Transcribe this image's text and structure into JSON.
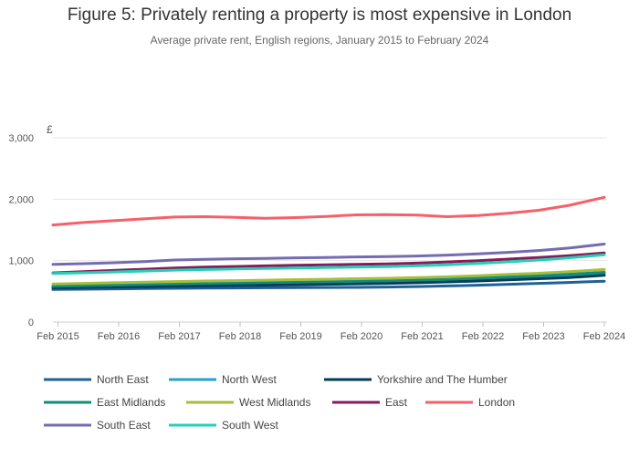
{
  "title": "Figure 5: Privately renting a property is most expensive in London",
  "subtitle": "Average private rent, English regions, January 2015 to February 2024",
  "chart_data": {
    "type": "line",
    "title": "Figure 5: Privately renting a property is most expensive in London",
    "subtitle": "Average private rent, English regions, January 2015 to February 2024",
    "ylabel": "£",
    "xlabel": "",
    "ylim": [
      0,
      3000
    ],
    "yticks": [
      0,
      1000,
      2000,
      3000
    ],
    "ytick_labels": [
      "0",
      "1,000",
      "2,000",
      "3,000"
    ],
    "xlim": [
      "2015-01",
      "2024-02"
    ],
    "xticks": [
      "2015-02",
      "2016-02",
      "2017-02",
      "2018-02",
      "2019-02",
      "2020-02",
      "2021-02",
      "2022-02",
      "2023-02",
      "2024-02"
    ],
    "xtick_labels": [
      "Feb 2015",
      "Feb 2016",
      "Feb 2017",
      "Feb 2018",
      "Feb 2019",
      "Feb 2020",
      "Feb 2021",
      "Feb 2022",
      "Feb 2023",
      "Feb 2024"
    ],
    "grid": "horizontal",
    "legend_position": "bottom",
    "x": [
      "2015-01",
      "2015-07",
      "2016-01",
      "2016-07",
      "2017-01",
      "2017-07",
      "2018-01",
      "2018-07",
      "2019-01",
      "2019-07",
      "2020-01",
      "2020-07",
      "2021-01",
      "2021-07",
      "2022-01",
      "2022-07",
      "2023-01",
      "2023-07",
      "2024-02"
    ],
    "series": [
      {
        "name": "North East",
        "color": "#206095",
        "values": [
          530,
          535,
          540,
          545,
          550,
          553,
          555,
          558,
          560,
          563,
          565,
          570,
          578,
          588,
          600,
          615,
          630,
          645,
          665
        ]
      },
      {
        "name": "North West",
        "color": "#27a0cc",
        "values": [
          580,
          588,
          595,
          602,
          610,
          615,
          620,
          627,
          635,
          642,
          650,
          658,
          668,
          682,
          700,
          718,
          737,
          758,
          790
        ]
      },
      {
        "name": "Yorkshire and The Humber",
        "color": "#003c57",
        "values": [
          560,
          566,
          572,
          578,
          585,
          590,
          595,
          601,
          608,
          615,
          622,
          630,
          640,
          653,
          668,
          686,
          705,
          725,
          760
        ]
      },
      {
        "name": "East Midlands",
        "color": "#118c7b",
        "values": [
          580,
          590,
          600,
          610,
          620,
          628,
          635,
          642,
          650,
          657,
          665,
          673,
          683,
          697,
          715,
          735,
          755,
          780,
          810
        ]
      },
      {
        "name": "West Midlands",
        "color": "#a8bd3a",
        "values": [
          620,
          630,
          640,
          650,
          660,
          668,
          675,
          682,
          690,
          697,
          705,
          713,
          723,
          737,
          755,
          775,
          795,
          820,
          855
        ]
      },
      {
        "name": "East",
        "color": "#871a5b",
        "values": [
          800,
          820,
          840,
          860,
          880,
          895,
          905,
          915,
          925,
          932,
          940,
          948,
          960,
          978,
          1000,
          1025,
          1050,
          1080,
          1125
        ]
      },
      {
        "name": "London",
        "color": "#f66068",
        "values": [
          1580,
          1620,
          1650,
          1680,
          1710,
          1715,
          1705,
          1690,
          1700,
          1720,
          1745,
          1750,
          1740,
          1715,
          1735,
          1770,
          1820,
          1900,
          2030
        ]
      },
      {
        "name": "South East",
        "color": "#746cb1",
        "values": [
          940,
          950,
          965,
          985,
          1010,
          1022,
          1030,
          1037,
          1045,
          1052,
          1060,
          1066,
          1075,
          1090,
          1110,
          1135,
          1165,
          1205,
          1270
        ]
      },
      {
        "name": "South West",
        "color": "#22d0b6",
        "values": [
          790,
          802,
          815,
          830,
          845,
          856,
          865,
          873,
          880,
          887,
          895,
          903,
          915,
          932,
          955,
          980,
          1010,
          1045,
          1095
        ]
      }
    ]
  }
}
